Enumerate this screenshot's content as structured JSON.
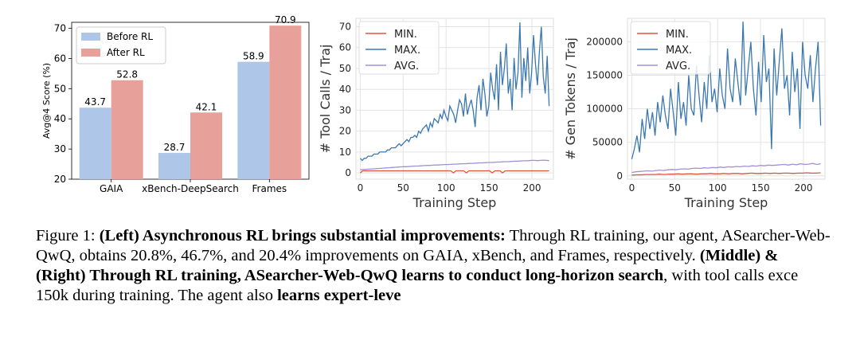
{
  "colors": {
    "before": "#aec7e8",
    "after": "#e8a09a",
    "min": "#d9553e",
    "max": "#3b78b0",
    "avg": "#a48fd6"
  },
  "chart_data": [
    {
      "type": "bar",
      "categories": [
        "GAIA",
        "xBench-DeepSearch",
        "Frames"
      ],
      "series": [
        {
          "name": "Before RL",
          "values": [
            43.7,
            28.7,
            58.9
          ]
        },
        {
          "name": "After RL",
          "values": [
            52.8,
            42.1,
            70.9
          ]
        }
      ],
      "ylabel": "Avg@4 Score (%)",
      "ylim": [
        20,
        72
      ],
      "yticks": [
        20,
        30,
        40,
        50,
        60,
        70
      ],
      "legend": "top-left"
    },
    {
      "type": "line",
      "xlabel": "Training Step",
      "ylabel": "# Tool Calls / Traj",
      "xlim": [
        -5,
        225
      ],
      "ylim": [
        -3,
        74
      ],
      "xticks": [
        0,
        50,
        100,
        150,
        200
      ],
      "yticks": [
        0,
        10,
        20,
        30,
        40,
        50,
        60,
        70
      ],
      "grid": true,
      "legend": "top-left",
      "series": [
        {
          "name": "MIN.",
          "values": [
            0,
            1,
            1,
            1,
            1,
            1,
            1,
            1,
            1,
            1,
            1,
            1,
            1,
            1,
            1,
            1,
            1,
            1,
            1,
            1,
            1,
            1,
            1,
            1,
            1,
            1,
            1,
            1,
            1,
            1,
            1,
            1,
            1,
            1,
            1,
            1,
            0,
            1,
            1,
            1,
            1,
            0,
            1,
            1,
            1,
            1,
            1,
            1,
            1,
            1,
            1,
            0,
            1,
            1,
            1,
            0,
            1,
            1,
            1,
            1,
            1,
            1,
            1,
            1,
            1,
            1,
            1,
            1,
            1,
            1,
            1,
            1,
            1,
            1
          ]
        },
        {
          "name": "MAX.",
          "values": [
            7,
            6,
            7,
            7,
            8,
            8,
            8,
            9,
            9,
            9,
            10,
            10,
            10,
            10,
            11,
            11,
            12,
            12,
            12,
            13,
            14,
            13,
            14,
            15,
            16,
            15,
            17,
            17,
            18,
            17,
            20,
            19,
            21,
            22,
            23,
            20,
            24,
            22,
            26,
            25,
            24,
            28,
            26,
            30,
            27,
            25,
            32,
            30,
            28,
            24,
            30,
            35,
            33,
            27,
            38,
            28,
            32,
            35,
            30,
            22,
            36,
            42,
            30,
            45,
            38,
            27,
            32,
            48,
            40,
            35,
            52,
            30,
            58,
            42,
            50,
            62,
            38,
            45,
            30,
            55,
            40,
            48,
            72,
            36,
            55,
            44,
            60,
            38,
            48,
            66,
            52,
            42,
            58,
            70,
            46,
            38,
            56,
            32
          ]
        },
        {
          "name": "AVG.",
          "values": [
            1.5,
            1.6,
            1.7,
            1.8,
            1.9,
            2,
            2.1,
            2.2,
            2.3,
            2.4,
            2.5,
            2.6,
            2.7,
            2.8,
            2.9,
            3,
            3,
            3.1,
            3.2,
            3.3,
            3.3,
            3.4,
            3.5,
            3.6,
            3.6,
            3.7,
            3.8,
            3.8,
            3.9,
            4,
            4,
            4.1,
            4.2,
            4.2,
            4.3,
            4.4,
            4.4,
            4.5,
            4.6,
            4.6,
            4.7,
            4.8,
            4.8,
            4.9,
            5,
            5,
            5.1,
            5.2,
            5.2,
            5.3,
            5.4,
            5.4,
            5.5,
            5.6,
            5.6,
            5.7,
            5.8,
            5.8,
            5.9,
            6,
            6,
            5.9,
            6,
            6.1,
            6,
            5.9
          ]
        }
      ]
    },
    {
      "type": "line",
      "xlabel": "Training Step",
      "ylabel": "# Gen Tokens / Traj",
      "xlim": [
        -5,
        225
      ],
      "ylim": [
        -5000,
        235000
      ],
      "xticks": [
        0,
        50,
        100,
        150,
        200
      ],
      "yticks": [
        0,
        50000,
        100000,
        150000,
        200000
      ],
      "grid": true,
      "legend": "top-left",
      "series": [
        {
          "name": "MIN.",
          "values": [
            1000,
            1500,
            1500,
            2000,
            2000,
            2000,
            2500,
            2000,
            2500,
            2500,
            3000,
            2500,
            3000,
            3000,
            2500,
            3000,
            3000,
            3500,
            3000,
            3000,
            3500,
            3000,
            3500,
            3500,
            3000,
            3500,
            4000,
            3500,
            3500,
            4000,
            3500,
            4000,
            3500,
            4000,
            4000,
            3500,
            4000,
            4000,
            4500,
            4000,
            4000,
            4500
          ]
        },
        {
          "name": "MAX.",
          "values": [
            25000,
            40000,
            60000,
            35000,
            85000,
            55000,
            100000,
            70000,
            95000,
            60000,
            110000,
            80000,
            120000,
            90000,
            70000,
            130000,
            95000,
            60000,
            140000,
            85000,
            110000,
            75000,
            150000,
            100000,
            90000,
            165000,
            120000,
            80000,
            140000,
            100000,
            180000,
            110000,
            130000,
            95000,
            160000,
            120000,
            100000,
            190000,
            130000,
            110000,
            175000,
            140000,
            105000,
            230000,
            120000,
            160000,
            200000,
            130000,
            90000,
            170000,
            110000,
            210000,
            140000,
            160000,
            40000,
            190000,
            120000,
            170000,
            220000,
            130000,
            150000,
            90000,
            185000,
            125000,
            160000,
            70000,
            200000,
            150000,
            130000,
            180000,
            110000,
            160000,
            200000,
            75000
          ]
        },
        {
          "name": "AVG.",
          "values": [
            5000,
            6000,
            6500,
            7000,
            7500,
            7000,
            8000,
            8500,
            8000,
            9000,
            9500,
            9000,
            10000,
            10500,
            10000,
            11000,
            11500,
            11000,
            12000,
            11500,
            12500,
            12000,
            13000,
            12500,
            13500,
            13000,
            14000,
            13500,
            14500,
            14000,
            15000,
            14500,
            15500,
            15000,
            16000,
            15500,
            16000,
            16500,
            17000,
            16000,
            17500,
            16500,
            18000,
            17000,
            17500,
            18500,
            17000,
            18000
          ]
        }
      ]
    }
  ],
  "caption": {
    "lead": "Figure 1: ",
    "b1": "(Left) Asynchronous RL brings substantial improvements:",
    "t1": " Through RL training, our agent, ASearcher-Web-QwQ, obtains 20.8%, 46.7%, and 20.4% improvements on GAIA, xBench, and Frames, respectively. ",
    "b2": "(Middle) & (Right) Through RL training, ASearcher-Web-QwQ learns to conduct long-horizon search",
    "t2": ", with tool calls exce",
    "t3": "150k during training. The agent also ",
    "b3": "learns expert-leve"
  }
}
